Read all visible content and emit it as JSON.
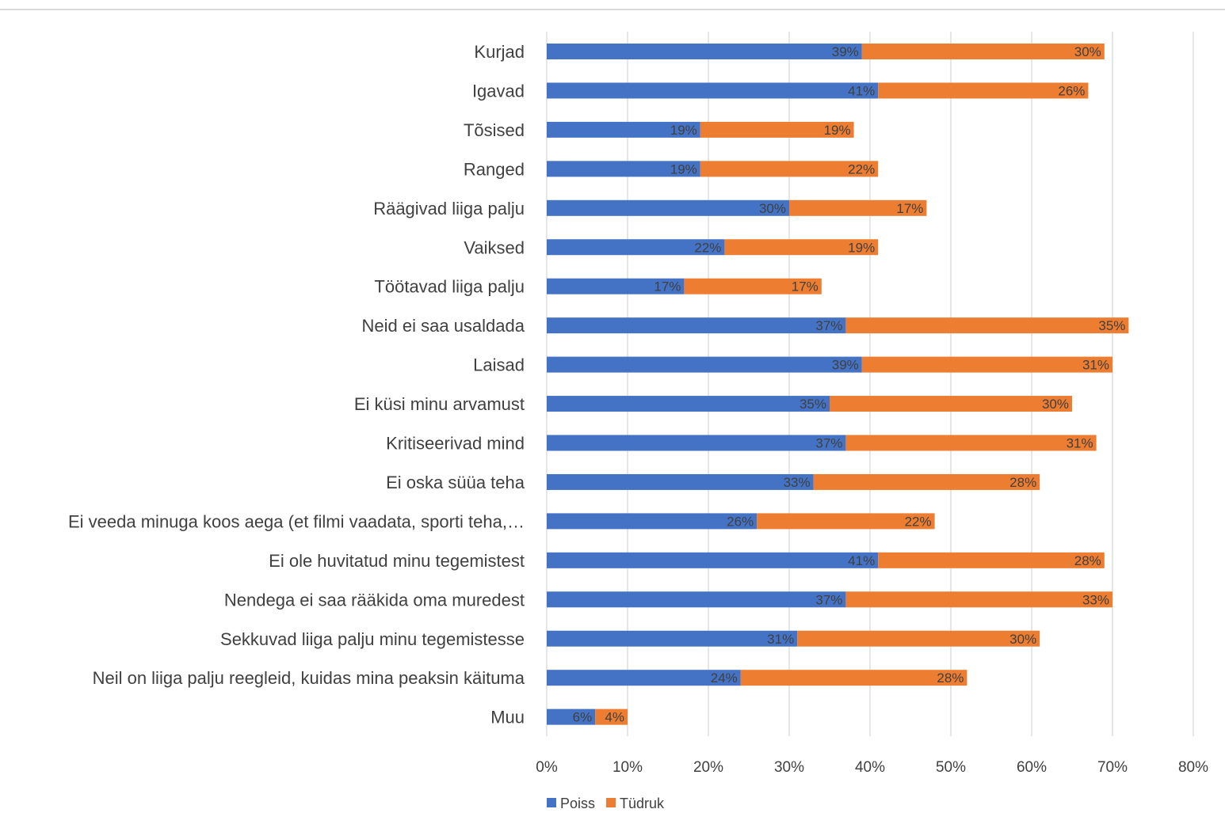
{
  "chart_data": {
    "type": "bar",
    "orientation": "horizontal",
    "stacked": true,
    "categories": [
      "Kurjad",
      "Igavad",
      "Tõsised",
      "Ranged",
      "Räägivad liiga palju",
      "Vaiksed",
      "Töötavad liiga palju",
      "Neid ei saa usaldada",
      "Laisad",
      "Ei küsi minu arvamust",
      "Kritiseerivad mind",
      "Ei oska süüa teha",
      "Ei veeda minuga koos aega (et filmi vaadata, sporti teha,…",
      "Ei ole huvitatud minu tegemistest",
      "Nendega ei saa rääkida oma muredest",
      "Sekkuvad liiga palju minu tegemistesse",
      "Neil on liiga palju reegleid, kuidas mina peaksin käituma",
      "Muu"
    ],
    "series": [
      {
        "name": "Poiss",
        "color": "#4472c4",
        "values": [
          39,
          41,
          19,
          19,
          30,
          22,
          17,
          37,
          39,
          35,
          37,
          33,
          26,
          41,
          37,
          31,
          24,
          6
        ],
        "labels": [
          "39%",
          "41%",
          "19%",
          "19%",
          "30%",
          "22%",
          "17%",
          "37%",
          "39%",
          "35%",
          "37%",
          "33%",
          "26%",
          "41%",
          "37%",
          "31%",
          "24%",
          "6%"
        ]
      },
      {
        "name": "Tüdruk",
        "color": "#ed7d31",
        "values": [
          30,
          26,
          19,
          22,
          17,
          19,
          17,
          35,
          31,
          30,
          31,
          28,
          22,
          28,
          33,
          30,
          28,
          4
        ],
        "labels": [
          "30%",
          "26%",
          "19%",
          "22%",
          "17%",
          "19%",
          "17%",
          "35%",
          "31%",
          "30%",
          "31%",
          "28%",
          "22%",
          "28%",
          "33%",
          "30%",
          "28%",
          "4%"
        ]
      }
    ],
    "xlim": [
      0,
      80
    ],
    "x_ticks": [
      "0%",
      "10%",
      "20%",
      "30%",
      "40%",
      "50%",
      "60%",
      "70%",
      "80%"
    ],
    "grid": true,
    "legend": "bottom"
  }
}
